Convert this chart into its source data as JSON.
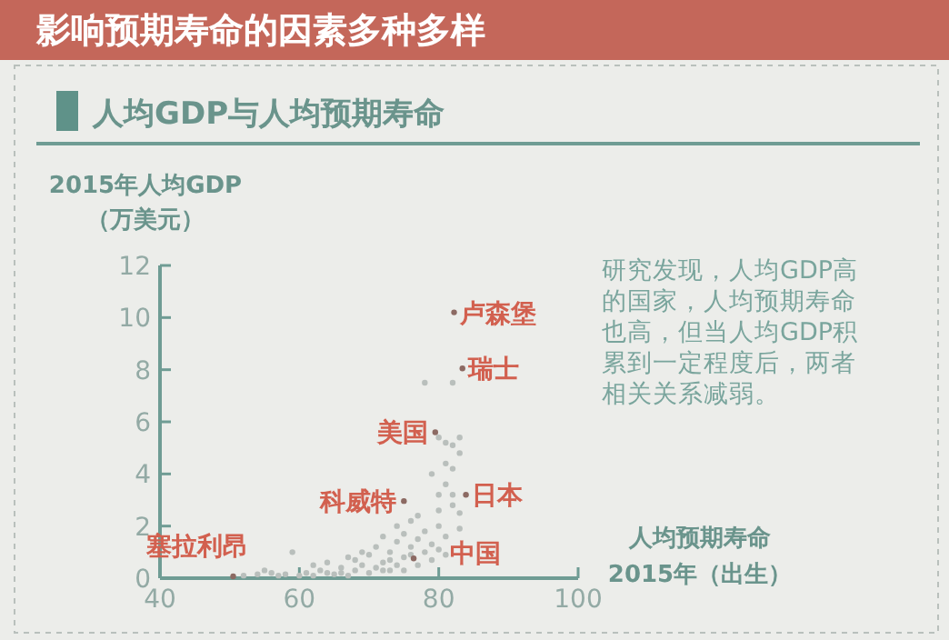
{
  "chart_data": {
    "type": "scatter",
    "title": "影响预期寿命的因素多种多样",
    "subtitle": "人均GDP与人均预期寿命",
    "xlabel": "人均预期寿命\n2015年（出生）",
    "ylabel": "2015年人均GDP\n（万美元）",
    "xlim": [
      40,
      100
    ],
    "xticks": [
      40,
      60,
      80,
      100
    ],
    "ylim": [
      0,
      12
    ],
    "yticks": [
      0,
      2,
      4,
      6,
      8,
      10,
      12
    ],
    "grid": false,
    "marker": "circle",
    "series": [
      {
        "color": "#b9bfbc",
        "x": [
          52,
          54,
          55,
          56,
          57,
          58,
          59,
          60,
          61,
          62,
          63,
          64,
          64,
          65,
          66,
          67,
          67,
          68,
          69,
          70,
          70,
          71,
          71,
          72,
          72,
          73,
          73,
          74,
          74,
          74,
          75,
          75,
          75,
          76,
          76,
          77,
          77,
          77,
          78,
          78,
          79,
          79,
          79,
          78,
          80,
          80,
          80,
          81,
          81,
          81,
          81,
          82,
          82,
          82,
          82,
          83,
          83,
          83,
          83,
          81,
          80,
          82,
          68,
          66,
          62,
          76,
          73,
          72,
          69,
          80
        ],
        "values": [
          0.1,
          0.15,
          0.3,
          0.2,
          0.1,
          0.15,
          1.0,
          0.1,
          0.2,
          0.1,
          0.3,
          0.2,
          0.6,
          0.15,
          0.4,
          0.1,
          0.8,
          0.3,
          0.5,
          0.2,
          0.9,
          0.4,
          1.2,
          0.6,
          1.6,
          0.3,
          1.0,
          0.5,
          1.4,
          2.0,
          0.8,
          1.7,
          0.3,
          1.2,
          2.2,
          0.5,
          1.5,
          2.4,
          1.0,
          1.8,
          0.7,
          1.3,
          4.0,
          7.5,
          2.0,
          3.2,
          2.6,
          1.6,
          4.4,
          3.6,
          5.2,
          4.2,
          5.1,
          2.8,
          7.5,
          5.4,
          4.8,
          2.5,
          1.9,
          0.9,
          1.1,
          3.2,
          0.7,
          0.2,
          0.5,
          0.9,
          0.7,
          0.3,
          1.0,
          5.4
        ]
      },
      {
        "color": "#8c6a63",
        "x": [
          82.2,
          83.4,
          79.5,
          83.9,
          75,
          76.4,
          50.5
        ],
        "values": [
          10.2,
          8.05,
          5.6,
          3.2,
          2.96,
          0.76,
          0.07
        ]
      }
    ],
    "annotations": [
      {
        "text": "卢森堡",
        "x": 82.2,
        "y": 10.2
      },
      {
        "text": "瑞士",
        "x": 83.4,
        "y": 8.05
      },
      {
        "text": "美国",
        "x": 79.5,
        "y": 5.6
      },
      {
        "text": "日本",
        "x": 83.9,
        "y": 3.2
      },
      {
        "text": "科威特",
        "x": 75,
        "y": 2.96
      },
      {
        "text": "中国",
        "x": 76.4,
        "y": 0.76
      },
      {
        "text": "塞拉利昂",
        "x": 50.5,
        "y": 0.07
      },
      "研究发现，人均GDP高的国家，人均预期寿命也高，但当人均GDP积累到一定程度后，两者相关关系减弱。"
    ]
  }
}
